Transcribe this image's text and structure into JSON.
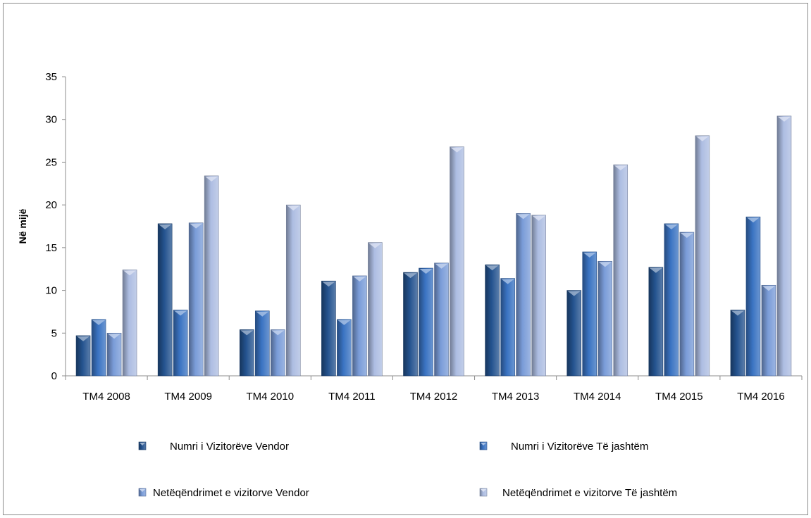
{
  "chart_data": {
    "type": "bar",
    "title": "",
    "xlabel": "",
    "ylabel": "Në mijë",
    "ylim": [
      0,
      35
    ],
    "yticks": [
      0,
      5,
      10,
      15,
      20,
      25,
      30,
      35
    ],
    "grid": false,
    "legend_position": "bottom",
    "categories": [
      "TM4 2008",
      "TM4 2009",
      "TM4 2010",
      "TM4 2011",
      "TM4 2012",
      "TM4 2013",
      "TM4 2014",
      "TM4 2015",
      "TM4 2016"
    ],
    "series": [
      {
        "name": "Numri i Vizitorëve Vendor",
        "color": "#24538f",
        "values": [
          4.7,
          17.8,
          5.4,
          11.1,
          12.1,
          13.0,
          10.0,
          12.7,
          7.7
        ]
      },
      {
        "name": "Numri i Vizitorëve Të jashtëm",
        "color": "#3a73c2",
        "values": [
          6.6,
          7.7,
          7.6,
          6.6,
          12.6,
          11.4,
          14.5,
          17.8,
          18.6
        ]
      },
      {
        "name": "Netëqëndrimet e vizitorve Vendor",
        "color": "#7a9cd8",
        "values": [
          5.0,
          17.9,
          5.4,
          11.7,
          13.2,
          19.0,
          13.4,
          16.8,
          10.6
        ]
      },
      {
        "name": "Netëqëndrimet e vizitorve Të jashtëm",
        "color": "#adbde2",
        "values": [
          12.4,
          23.4,
          20.0,
          15.6,
          26.8,
          18.8,
          24.7,
          28.1,
          30.4
        ]
      }
    ]
  }
}
